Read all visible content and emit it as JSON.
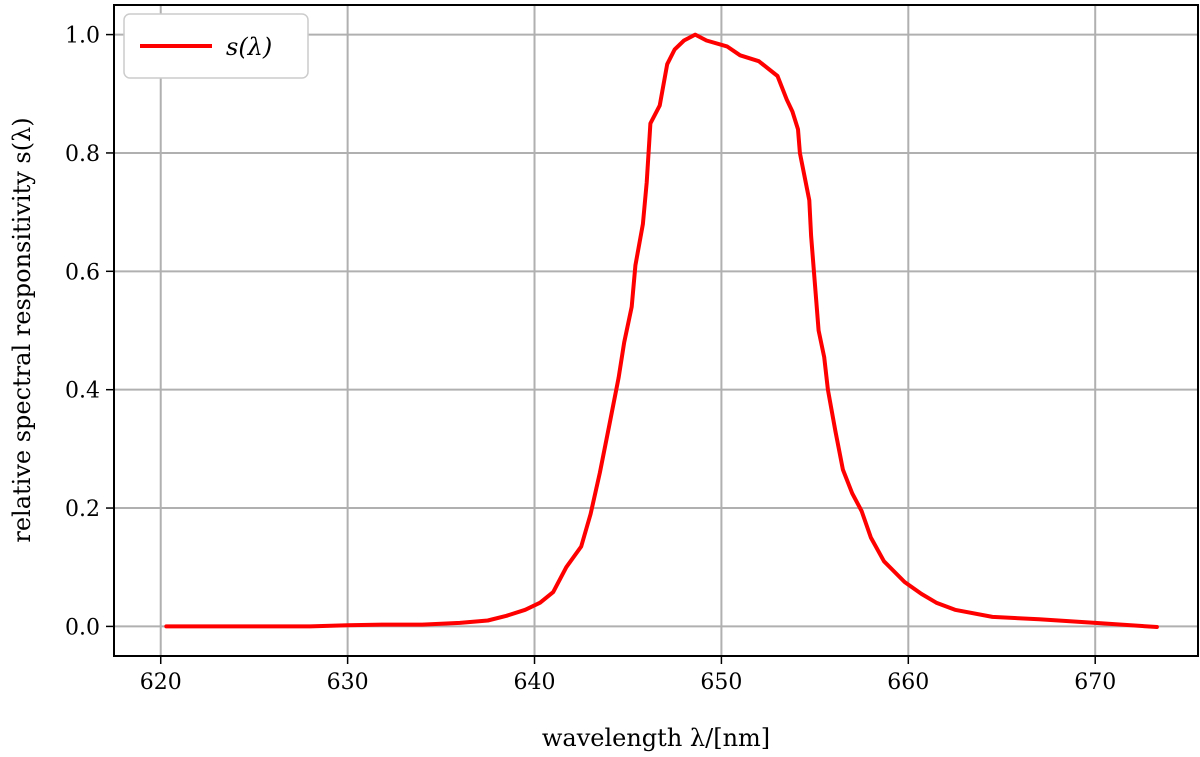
{
  "chart_data": {
    "type": "line",
    "xlabel": "wavelength λ/[nm]",
    "ylabel": "relative spectral responsitivity s(λ)",
    "xlim": [
      617.5,
      675.5
    ],
    "ylim": [
      -0.05,
      1.05
    ],
    "xticks": [
      620,
      630,
      640,
      650,
      660,
      670
    ],
    "yticks": [
      0.0,
      0.2,
      0.4,
      0.6,
      0.8,
      1.0
    ],
    "xtick_labels": [
      "620",
      "630",
      "640",
      "650",
      "660",
      "670"
    ],
    "ytick_labels": [
      "0.0",
      "0.2",
      "0.4",
      "0.6",
      "0.8",
      "1.0"
    ],
    "grid": true,
    "legend_position": "top-left",
    "series": [
      {
        "name": "s(λ)",
        "color": "#ff0000",
        "points": [
          [
            620.3,
            0.0
          ],
          [
            625,
            0.0
          ],
          [
            628,
            0.0
          ],
          [
            630,
            0.002
          ],
          [
            632,
            0.003
          ],
          [
            634,
            0.003
          ],
          [
            636,
            0.006
          ],
          [
            637.5,
            0.01
          ],
          [
            638.5,
            0.018
          ],
          [
            639.5,
            0.028
          ],
          [
            640.3,
            0.04
          ],
          [
            641,
            0.058
          ],
          [
            641.7,
            0.1
          ],
          [
            642.5,
            0.135
          ],
          [
            643,
            0.19
          ],
          [
            643.5,
            0.26
          ],
          [
            644,
            0.34
          ],
          [
            644.5,
            0.42
          ],
          [
            644.8,
            0.48
          ],
          [
            645.2,
            0.54
          ],
          [
            645.4,
            0.61
          ],
          [
            645.8,
            0.68
          ],
          [
            646,
            0.75
          ],
          [
            646.2,
            0.85
          ],
          [
            646.7,
            0.88
          ],
          [
            647.1,
            0.95
          ],
          [
            647.5,
            0.975
          ],
          [
            648,
            0.99
          ],
          [
            648.6,
            1.0
          ],
          [
            649.2,
            0.99
          ],
          [
            650.3,
            0.98
          ],
          [
            651,
            0.965
          ],
          [
            652,
            0.955
          ],
          [
            653,
            0.93
          ],
          [
            653.5,
            0.89
          ],
          [
            653.8,
            0.87
          ],
          [
            654.1,
            0.84
          ],
          [
            654.2,
            0.8
          ],
          [
            654.7,
            0.72
          ],
          [
            654.8,
            0.66
          ],
          [
            655.2,
            0.5
          ],
          [
            655.5,
            0.455
          ],
          [
            655.7,
            0.4
          ],
          [
            656.1,
            0.33
          ],
          [
            656.5,
            0.265
          ],
          [
            657,
            0.225
          ],
          [
            657.5,
            0.195
          ],
          [
            658,
            0.15
          ],
          [
            658.7,
            0.11
          ],
          [
            659.8,
            0.075
          ],
          [
            660.7,
            0.055
          ],
          [
            661.5,
            0.04
          ],
          [
            662.5,
            0.028
          ],
          [
            664.5,
            0.016
          ],
          [
            667,
            0.012
          ],
          [
            670,
            0.006
          ],
          [
            673.3,
            -0.001
          ]
        ]
      }
    ]
  }
}
